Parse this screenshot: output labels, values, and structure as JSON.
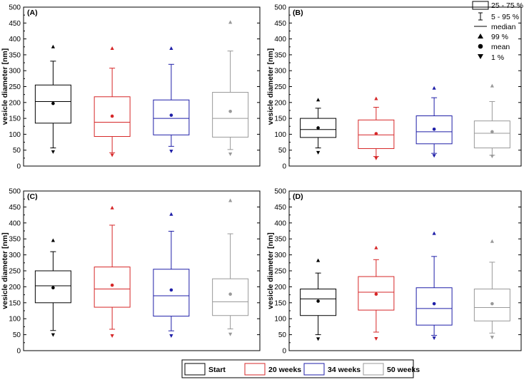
{
  "figure": {
    "ylabel": "vesicle diameter [nm]",
    "ticks": [
      "0",
      "50",
      "100",
      "150",
      "200",
      "250",
      "300",
      "350",
      "400",
      "450",
      "500"
    ]
  },
  "key": {
    "box": "25 - 75 %",
    "whisker": "5 - 95 %",
    "median": "median",
    "p99": "99 %",
    "mean": "mean",
    "p1": "1 %"
  },
  "colors": {
    "start": "#000000",
    "w20": "#d62728",
    "w34": "#1f1fa8",
    "w50": "#999999"
  },
  "legend": [
    {
      "label": "Start",
      "color": "#000000"
    },
    {
      "label": "20 weeks",
      "color": "#d62728"
    },
    {
      "label": "34 weeks",
      "color": "#1f1fa8"
    },
    {
      "label": "50 weeks",
      "color": "#999999"
    }
  ],
  "chart_data": [
    {
      "type": "box",
      "panel": "(A)",
      "ylabel": "vesicle diameter [nm]",
      "ylim": [
        0,
        500
      ],
      "series": [
        {
          "name": "Start",
          "q1": 135,
          "median": 203,
          "q3": 255,
          "p5": 57,
          "p95": 330,
          "mean": 197,
          "p1": 45,
          "p99": 375
        },
        {
          "name": "20 weeks",
          "q1": 93,
          "median": 138,
          "q3": 218,
          "p5": 42,
          "p95": 308,
          "mean": 157,
          "p1": 35,
          "p99": 370
        },
        {
          "name": "34 weeks",
          "q1": 98,
          "median": 150,
          "q3": 208,
          "p5": 62,
          "p95": 320,
          "mean": 160,
          "p1": 47,
          "p99": 370
        },
        {
          "name": "50 weeks",
          "q1": 91,
          "median": 150,
          "q3": 232,
          "p5": 52,
          "p95": 362,
          "mean": 172,
          "p1": 38,
          "p99": 452
        }
      ]
    },
    {
      "type": "box",
      "panel": "(B)",
      "ylabel": "vesicle diameter [nm]",
      "ylim": [
        0,
        500
      ],
      "series": [
        {
          "name": "Start",
          "q1": 90,
          "median": 115,
          "q3": 150,
          "p5": 57,
          "p95": 182,
          "mean": 120,
          "p1": 43,
          "p99": 208
        },
        {
          "name": "20 weeks",
          "q1": 55,
          "median": 98,
          "q3": 145,
          "p5": 30,
          "p95": 185,
          "mean": 102,
          "p1": 25,
          "p99": 212
        },
        {
          "name": "34 weeks",
          "q1": 70,
          "median": 108,
          "q3": 158,
          "p5": 40,
          "p95": 215,
          "mean": 116,
          "p1": 33,
          "p99": 245
        },
        {
          "name": "50 weeks",
          "q1": 57,
          "median": 103,
          "q3": 142,
          "p5": 34,
          "p95": 203,
          "mean": 108,
          "p1": 31,
          "p99": 252
        }
      ]
    },
    {
      "type": "box",
      "panel": "(C)",
      "ylabel": "vesicle diameter [nm]",
      "ylim": [
        0,
        500
      ],
      "series": [
        {
          "name": "Start",
          "q1": 150,
          "median": 203,
          "q3": 250,
          "p5": 63,
          "p95": 310,
          "mean": 197,
          "p1": 50,
          "p99": 345
        },
        {
          "name": "20 weeks",
          "q1": 136,
          "median": 193,
          "q3": 262,
          "p5": 67,
          "p95": 393,
          "mean": 205,
          "p1": 47,
          "p99": 447
        },
        {
          "name": "34 weeks",
          "q1": 108,
          "median": 172,
          "q3": 255,
          "p5": 62,
          "p95": 374,
          "mean": 190,
          "p1": 47,
          "p99": 427
        },
        {
          "name": "50 weeks",
          "q1": 110,
          "median": 153,
          "q3": 225,
          "p5": 68,
          "p95": 366,
          "mean": 177,
          "p1": 52,
          "p99": 470
        }
      ]
    },
    {
      "type": "box",
      "panel": "(D)",
      "ylabel": "vesicle diameter [nm]",
      "ylim": [
        0,
        500
      ],
      "series": [
        {
          "name": "Start",
          "q1": 110,
          "median": 162,
          "q3": 193,
          "p5": 50,
          "p95": 243,
          "mean": 155,
          "p1": 37,
          "p99": 282
        },
        {
          "name": "20 weeks",
          "q1": 127,
          "median": 183,
          "q3": 232,
          "p5": 58,
          "p95": 285,
          "mean": 177,
          "p1": 38,
          "p99": 322
        },
        {
          "name": "34 weeks",
          "q1": 80,
          "median": 132,
          "q3": 197,
          "p5": 48,
          "p95": 295,
          "mean": 147,
          "p1": 40,
          "p99": 367
        },
        {
          "name": "50 weeks",
          "q1": 93,
          "median": 135,
          "q3": 193,
          "p5": 55,
          "p95": 277,
          "mean": 147,
          "p1": 42,
          "p99": 342
        }
      ]
    }
  ]
}
